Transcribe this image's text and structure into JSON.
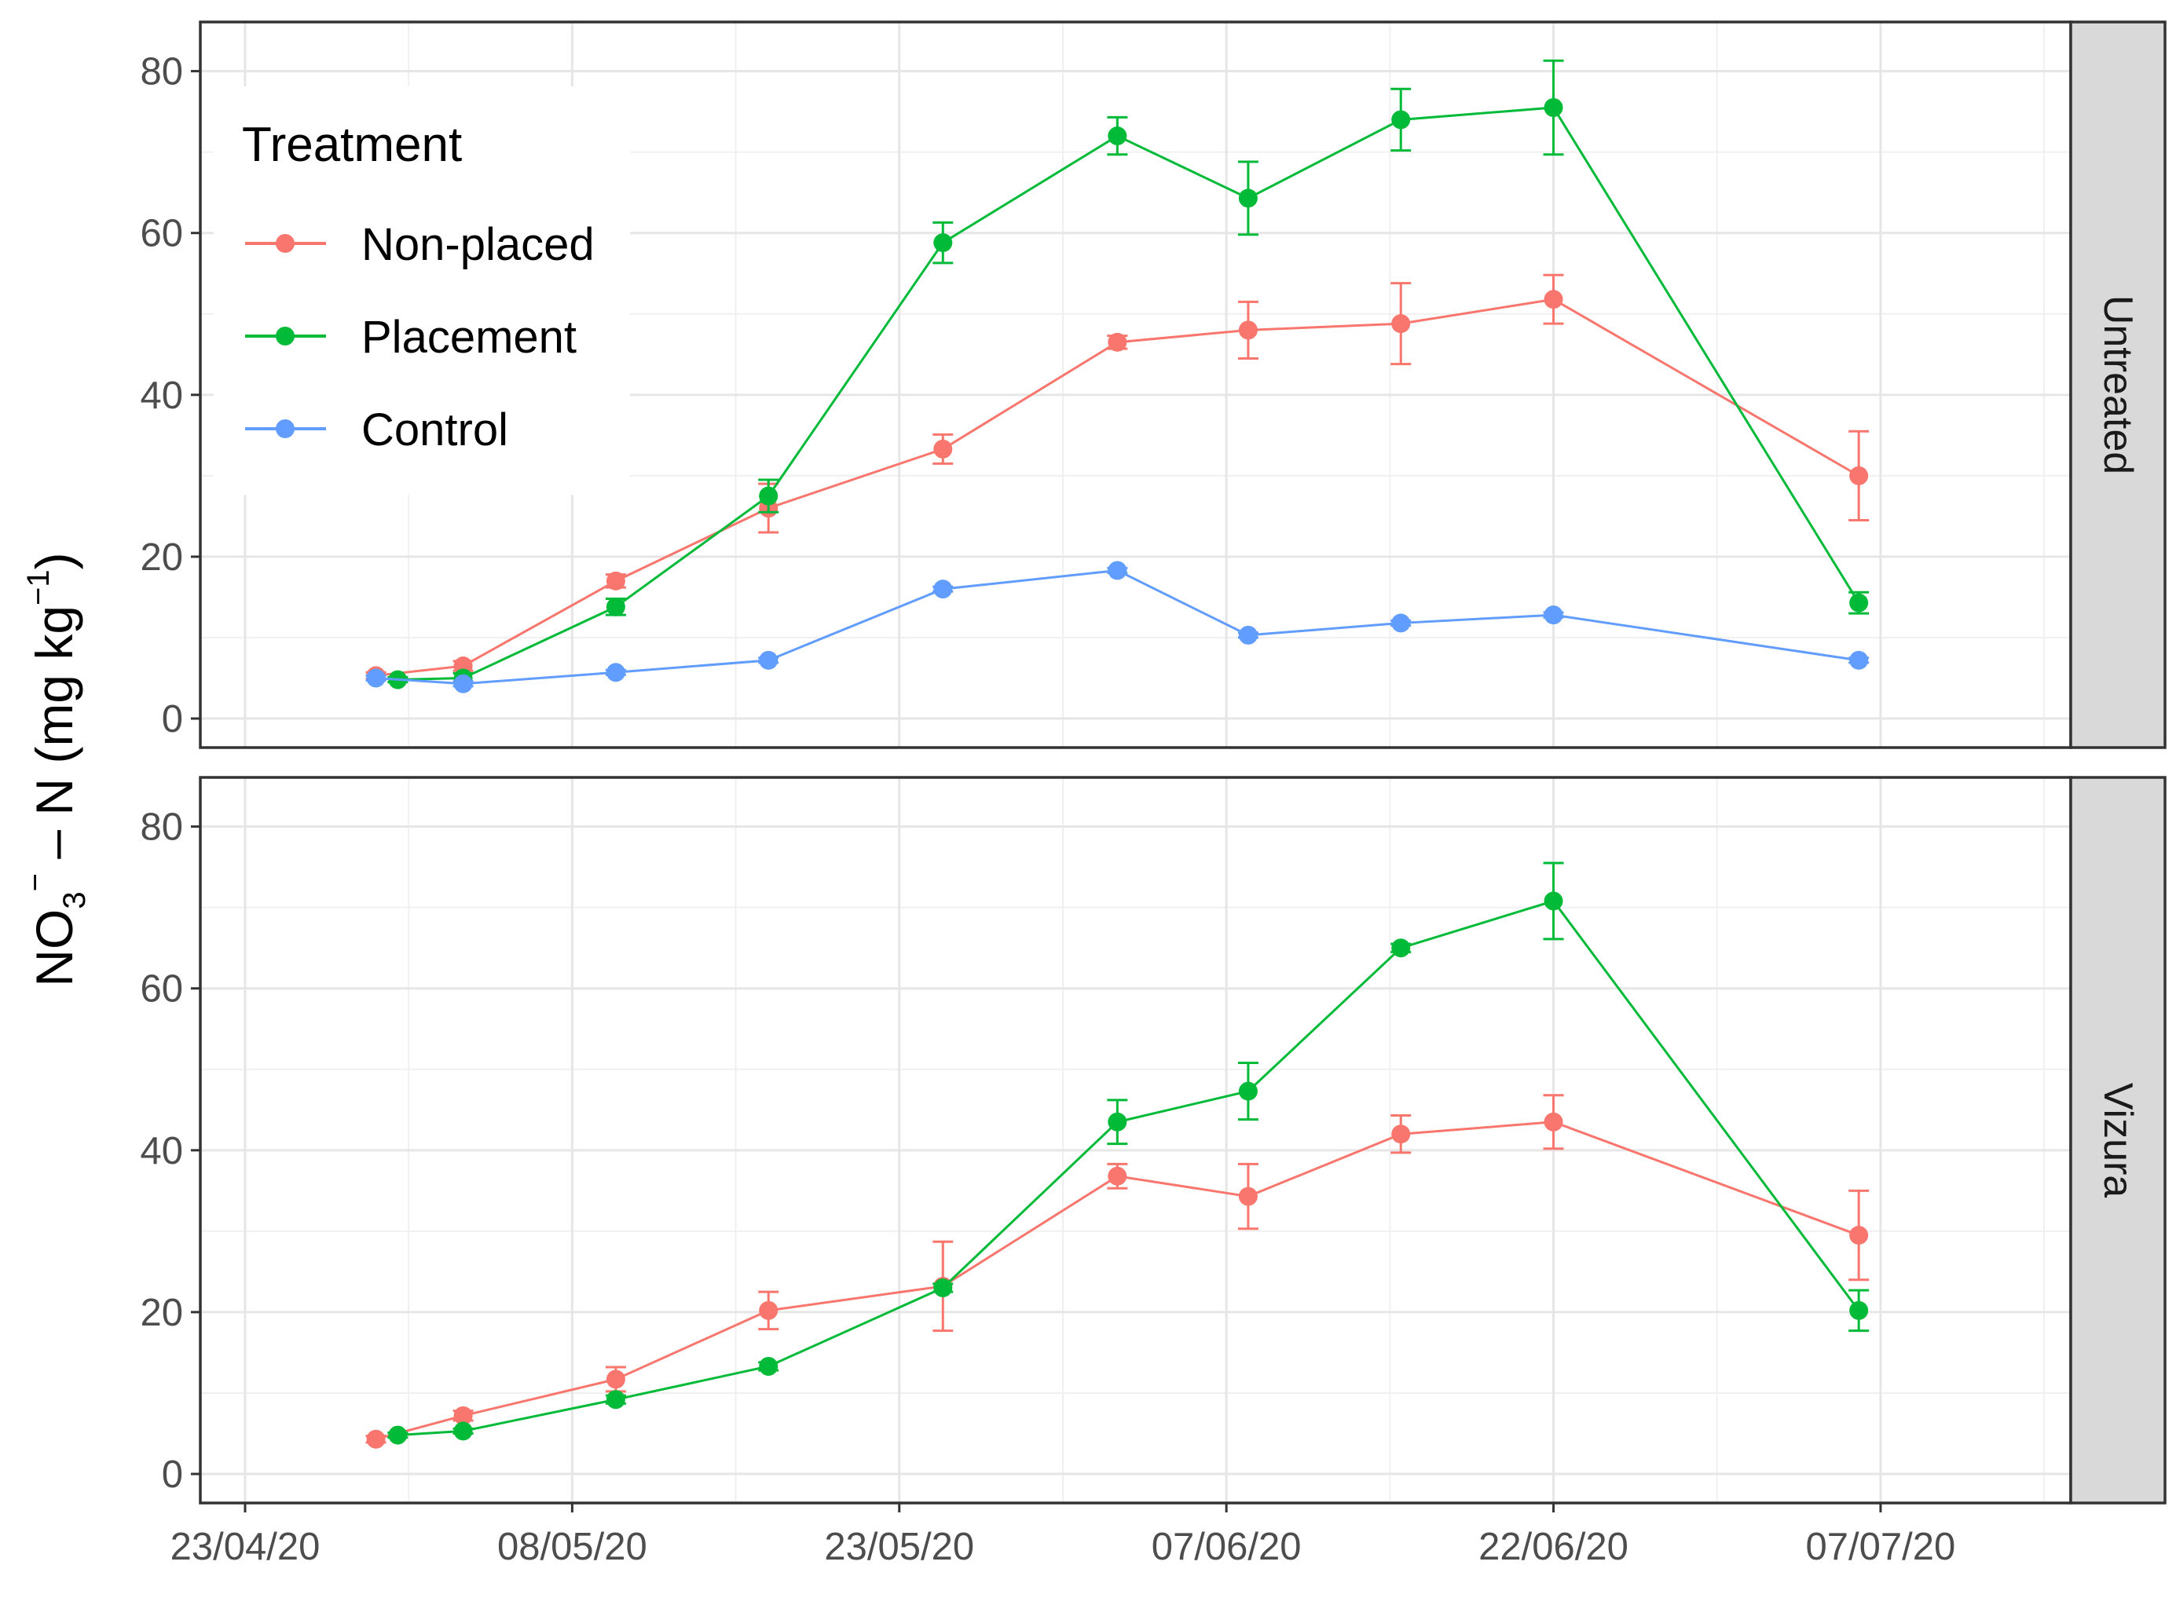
{
  "chart_data": {
    "type": "line",
    "ylabel": "NO3⁻ – N (mg kg⁻¹)",
    "ylabel_parts": {
      "main": "NO",
      "sub": "3",
      "sup_minus": "−",
      "rest": " – N (mg kg",
      "unit_sup": "−1",
      "close": ")"
    },
    "xlabel": "",
    "x_type": "date",
    "x_ticks": [
      "2020-04-23",
      "2020-05-08",
      "2020-05-23",
      "2020-06-07",
      "2020-06-22",
      "2020-07-07"
    ],
    "x_tick_labels": [
      "23/04/20",
      "08/05/20",
      "23/05/20",
      "07/06/20",
      "22/06/20",
      "07/07/20"
    ],
    "xlim": [
      "2020-04-23",
      "2020-07-15"
    ],
    "y_ticks": [
      0,
      20,
      40,
      60,
      80
    ],
    "ylim": [
      0,
      85
    ],
    "grid": true,
    "legend": {
      "title": "Treatment",
      "position": "inside-top-left",
      "entries": [
        "Non-placed",
        "Placement",
        "Control"
      ]
    },
    "colors": {
      "Non-placed": "#F8766D",
      "Placement": "#00BA38",
      "Control": "#619CFF"
    },
    "panels": [
      {
        "strip": "Untreated",
        "series": [
          {
            "name": "Non-placed",
            "x": [
              "2020-04-29",
              "2020-05-03",
              "2020-05-10",
              "2020-05-17",
              "2020-05-25",
              "2020-06-02",
              "2020-06-08",
              "2020-06-15",
              "2020-06-22",
              "2020-07-06"
            ],
            "y": [
              5.3,
              6.5,
              17.0,
              26.0,
              33.3,
              46.5,
              48.0,
              48.8,
              51.8,
              30.0
            ],
            "err": [
              0.4,
              0.6,
              0.8,
              3.0,
              1.8,
              0.8,
              3.5,
              5.0,
              3.0,
              5.5
            ]
          },
          {
            "name": "Placement",
            "x": [
              "2020-04-30",
              "2020-05-03",
              "2020-05-10",
              "2020-05-17",
              "2020-05-25",
              "2020-06-02",
              "2020-06-08",
              "2020-06-15",
              "2020-06-22",
              "2020-07-06"
            ],
            "y": [
              4.8,
              5.0,
              13.8,
              27.5,
              58.8,
              72.0,
              64.3,
              74.0,
              75.5,
              14.3
            ],
            "err": [
              0.3,
              0.6,
              1.0,
              2.0,
              2.5,
              2.3,
              4.5,
              3.8,
              5.8,
              1.3
            ]
          },
          {
            "name": "Control",
            "x": [
              "2020-04-29",
              "2020-05-03",
              "2020-05-10",
              "2020-05-17",
              "2020-05-25",
              "2020-06-02",
              "2020-06-08",
              "2020-06-15",
              "2020-06-22",
              "2020-07-06"
            ],
            "y": [
              5.0,
              4.3,
              5.7,
              7.2,
              16.0,
              18.3,
              10.3,
              11.8,
              12.8,
              7.2
            ],
            "err": [
              0.3,
              0.3,
              0.3,
              0.3,
              0.3,
              0.3,
              0.3,
              0.3,
              0.3,
              0.3
            ]
          }
        ]
      },
      {
        "strip": "Vizura",
        "series": [
          {
            "name": "Non-placed",
            "x": [
              "2020-04-29",
              "2020-05-03",
              "2020-05-10",
              "2020-05-17",
              "2020-05-25",
              "2020-06-02",
              "2020-06-08",
              "2020-06-15",
              "2020-06-22",
              "2020-07-06"
            ],
            "y": [
              4.3,
              7.2,
              11.7,
              20.2,
              23.2,
              36.8,
              34.3,
              42.0,
              43.5,
              29.5
            ],
            "err": [
              0.4,
              0.6,
              1.5,
              2.3,
              5.5,
              1.5,
              4.0,
              2.3,
              3.3,
              5.5
            ]
          },
          {
            "name": "Placement",
            "x": [
              "2020-04-30",
              "2020-05-03",
              "2020-05-10",
              "2020-05-17",
              "2020-05-25",
              "2020-06-02",
              "2020-06-08",
              "2020-06-15",
              "2020-06-22",
              "2020-07-06"
            ],
            "y": [
              4.8,
              5.3,
              9.2,
              13.3,
              23.0,
              43.5,
              47.3,
              65.0,
              70.8,
              20.2
            ],
            "err": [
              0.3,
              0.3,
              0.5,
              0.5,
              0.5,
              2.7,
              3.5,
              0.5,
              4.7,
              2.5
            ]
          }
        ]
      }
    ]
  }
}
